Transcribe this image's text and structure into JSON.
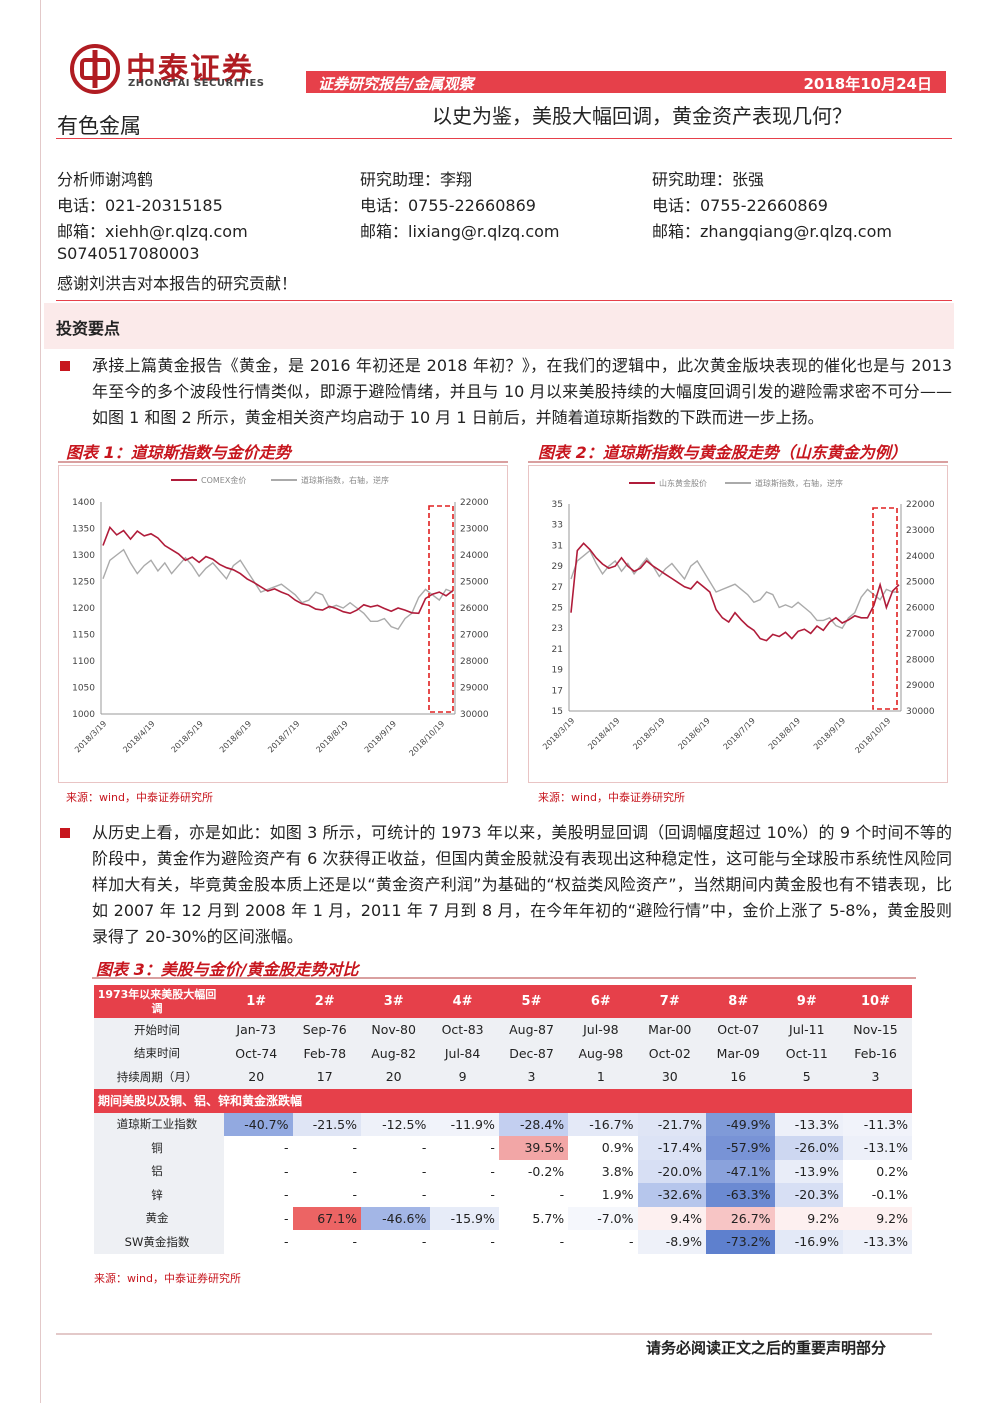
{
  "header": {
    "brand_cn": "中泰证券",
    "brand_en": "ZHONGTAI SECURITIES",
    "report_type": "证券研究报告/金属观察",
    "date": "2018年10月24日",
    "sector": "有色金属",
    "title": "以史为鉴，美股大幅回调，黄金资产表现几何？"
  },
  "authors": [
    {
      "role": "分析师谢鸿鹤",
      "phone": "电话：021-20315185",
      "email": "邮箱：xiehh@r.qlzq.com",
      "cert": "S0740517080003"
    },
    {
      "role": "研究助理：李翔",
      "phone": "电话：0755-22660869",
      "email": "邮箱：lixiang@r.qlzq.com"
    },
    {
      "role": "研究助理：张强",
      "phone": "电话：0755-22660869",
      "email": "邮箱：zhangqiang@r.qlzq.com"
    }
  ],
  "thanks": "感谢刘洪吉对本报告的研究贡献！",
  "section_title": "投资要点",
  "para1": "承接上篇黄金报告《黄金，是 2016 年初还是 2018 年初？》，在我们的逻辑中，此次黄金版块表现的催化也是与 2013 年至今的多个波段性行情类似，即源于避险情绪，并且与 10 月以来美股持续的大幅度回调引发的避险需求密不可分——如图 1 和图 2 所示，黄金相关资产均启动于 10 月 1 日前后，并随着道琼斯指数的下跌而进一步上扬。",
  "para2": "从历史上看，亦是如此：如图 3 所示，可统计的 1973 年以来，美股明显回调（回调幅度超过 10%）的 9 个时间不等的阶段中，黄金作为避险资产有 6 次获得正收益，但国内黄金股就没有表现出这种稳定性，这可能与全球股市系统性风险同样加大有关，毕竟黄金股本质上还是以“黄金资产利润”为基础的“权益类风险资产”，当然期间内黄金股也有不错表现，比如 2007 年 12 月到 2008 年 1 月，2011 年 7 月到 8 月，在今年年初的“避险行情”中，金价上涨了 5-8%，黄金股则录得了 20-30%的区间涨幅。",
  "fig1": {
    "title": "图表 1：道琼斯指数与金价走势",
    "legend1": "COMEX金价",
    "legend2": "道琼斯指数，右轴，逆序",
    "source": "来源：wind，中泰证券研究所"
  },
  "fig2": {
    "title": "图表 2：道琼斯指数与黄金股走势（山东黄金为例）",
    "legend1": "山东黄金股价",
    "legend2": "道琼斯指数，右轴，逆序",
    "source": "来源：wind，中泰证券研究所"
  },
  "chart_data": [
    {
      "type": "line",
      "title": "图表 1：道琼斯指数与金价走势",
      "x_ticks": [
        "2018/3/19",
        "2018/4/19",
        "2018/5/19",
        "2018/6/19",
        "2018/7/19",
        "2018/8/19",
        "2018/9/19",
        "2018/10/19"
      ],
      "y_left_ticks": [
        "1400",
        "1350",
        "1300",
        "1250",
        "1200",
        "1150",
        "1100",
        "1050",
        "1000"
      ],
      "y_right_ticks": [
        "22000",
        "23000",
        "24000",
        "25000",
        "26000",
        "27000",
        "28000",
        "29000",
        "30000"
      ],
      "ylim": [
        1000,
        1400
      ],
      "y2lim": [
        22000,
        30000
      ],
      "y2_reversed": true,
      "series": [
        {
          "name": "COMEX金价",
          "color": "#b01c3a",
          "values": [
            1318,
            1352,
            1338,
            1346,
            1330,
            1345,
            1336,
            1340,
            1332,
            1318,
            1310,
            1302,
            1290,
            1296,
            1286,
            1297,
            1292,
            1282,
            1276,
            1272,
            1265,
            1255,
            1248,
            1240,
            1232,
            1236,
            1230,
            1225,
            1215,
            1208,
            1205,
            1198,
            1196,
            1203,
            1199,
            1193,
            1190,
            1196,
            1206,
            1202,
            1205,
            1199,
            1194,
            1200,
            1196,
            1191,
            1190,
            1218,
            1226,
            1230,
            1223,
            1233
          ]
        },
        {
          "name": "道琼斯指数，右轴，逆序",
          "color": "#aaaaaa",
          "values": [
            24900,
            24200,
            24000,
            23800,
            24300,
            24700,
            24400,
            24200,
            24600,
            24300,
            24700,
            24400,
            24100,
            24400,
            24800,
            24500,
            24300,
            24600,
            24900,
            24400,
            24200,
            24600,
            25000,
            25400,
            25300,
            25200,
            25100,
            25300,
            25500,
            25800,
            25700,
            25400,
            25500,
            26000,
            25900,
            26000,
            25800,
            26000,
            26200,
            26500,
            26500,
            26400,
            26700,
            26800,
            26400,
            26200,
            25600,
            25300,
            25500,
            25700,
            25300,
            25400
          ]
        }
      ],
      "highlight_window": "2018/10/19"
    },
    {
      "type": "line",
      "title": "图表 2：道琼斯指数与黄金股走势（山东黄金为例）",
      "x_ticks": [
        "2018/3/19",
        "2018/4/19",
        "2018/5/19",
        "2018/6/19",
        "2018/7/19",
        "2018/8/19",
        "2018/9/19",
        "2018/10/19"
      ],
      "y_left_ticks": [
        "35",
        "33",
        "31",
        "29",
        "27",
        "25",
        "23",
        "21",
        "19",
        "17",
        "15"
      ],
      "y_right_ticks": [
        "22000",
        "23000",
        "24000",
        "25000",
        "26000",
        "27000",
        "28000",
        "29000",
        "30000"
      ],
      "ylim": [
        15,
        35
      ],
      "y2lim": [
        22000,
        30000
      ],
      "y2_reversed": true,
      "series": [
        {
          "name": "山东黄金股价",
          "color": "#b01c3a",
          "values": [
            24.5,
            30.5,
            31.2,
            30.6,
            29.8,
            29.2,
            28.8,
            29.0,
            29.8,
            29.0,
            28.5,
            28.8,
            29.5,
            29.0,
            28.6,
            28.2,
            27.8,
            27.4,
            27.0,
            26.8,
            27.5,
            27.0,
            26.5,
            24.8,
            24.0,
            23.6,
            24.5,
            23.8,
            23.2,
            22.8,
            22.0,
            21.8,
            22.4,
            22.2,
            22.6,
            22.0,
            22.7,
            22.9,
            22.5,
            23.2,
            22.8,
            23.6,
            24.0,
            23.5,
            23.8,
            24.2,
            24.0,
            24.0,
            25.2,
            27.2,
            25.0,
            26.6,
            27.2
          ]
        },
        {
          "name": "道琼斯指数，右轴，逆序",
          "color": "#aaaaaa",
          "values": [
            24900,
            24200,
            24000,
            23800,
            24300,
            24700,
            24400,
            24200,
            24600,
            24300,
            24700,
            24400,
            24100,
            24400,
            24800,
            24500,
            24300,
            24600,
            24900,
            24400,
            24200,
            24600,
            25000,
            25400,
            25300,
            25200,
            25100,
            25300,
            25500,
            25800,
            25700,
            25400,
            25500,
            26000,
            25900,
            26000,
            25800,
            26000,
            26200,
            26500,
            26500,
            26400,
            26700,
            26800,
            26400,
            26200,
            25600,
            25300,
            25500,
            25700,
            25300,
            25400,
            25400
          ]
        }
      ],
      "highlight_window": "2018/10/19"
    }
  ],
  "fig3": {
    "title": "图表 3：美股与金价/黄金股走势对比",
    "corner": "1973年以来美股大幅回调",
    "cols": [
      "1#",
      "2#",
      "3#",
      "4#",
      "5#",
      "6#",
      "7#",
      "8#",
      "9#",
      "10#"
    ],
    "rows_info": [
      {
        "label": "开始时间",
        "values": [
          "Jan-73",
          "Sep-76",
          "Nov-80",
          "Oct-83",
          "Aug-87",
          "Jul-98",
          "Mar-00",
          "Oct-07",
          "Jul-11",
          "Nov-15"
        ]
      },
      {
        "label": "结束时间",
        "values": [
          "Oct-74",
          "Feb-78",
          "Aug-82",
          "Jul-84",
          "Dec-87",
          "Aug-98",
          "Oct-02",
          "Mar-09",
          "Oct-11",
          "Feb-16"
        ]
      },
      {
        "label": "持续周期（月）",
        "values": [
          "20",
          "17",
          "20",
          "9",
          "3",
          "1",
          "30",
          "16",
          "5",
          "3"
        ]
      }
    ],
    "sub_header": "期间美股以及铜、铝、锌和黄金涨跌幅",
    "rows_perf": [
      {
        "label": "道琼斯工业指数",
        "values": [
          "-40.7%",
          "-21.5%",
          "-12.5%",
          "-11.9%",
          "-28.4%",
          "-16.7%",
          "-21.7%",
          "-49.9%",
          "-13.3%",
          "-11.3%"
        ],
        "colors": [
          "#92a9e0",
          "#dfe5f5",
          "#eef1f9",
          "#f1f3fa",
          "#c3cff0",
          "#e4e9f7",
          "#dfe5f5",
          "#7f9ad8",
          "#edf0f9",
          "#f1f3fa"
        ]
      },
      {
        "label": "铜",
        "values": [
          "-",
          "-",
          "-",
          "-",
          "39.5%",
          "0.9%",
          "-17.4%",
          "-57.9%",
          "-26.0%",
          "-13.1%"
        ],
        "colors": [
          "#fff",
          "#fff",
          "#fff",
          "#fff",
          "#f2a6a6",
          "#fff",
          "#dce3f5",
          "#7893d6",
          "#cdd7f1",
          "#edf0f9"
        ]
      },
      {
        "label": "铝",
        "values": [
          "-",
          "-",
          "-",
          "-",
          "-0.2%",
          "3.8%",
          "-20.0%",
          "-47.1%",
          "-13.9%",
          "0.2%"
        ],
        "colors": [
          "#fff",
          "#fff",
          "#fff",
          "#fff",
          "#fff",
          "#fff",
          "#d7dff4",
          "#8aa2dc",
          "#e9edf8",
          "#fff"
        ]
      },
      {
        "label": "锌",
        "values": [
          "-",
          "-",
          "-",
          "-",
          "-",
          "1.9%",
          "-32.6%",
          "-63.3%",
          "-20.3%",
          "-0.1%"
        ],
        "colors": [
          "#fff",
          "#fff",
          "#fff",
          "#fff",
          "#fff",
          "#fff",
          "#b6c6ec",
          "#6b8ad2",
          "#d7dff4",
          "#fff"
        ]
      },
      {
        "label": "黄金",
        "values": [
          "-",
          "67.1%",
          "-46.6%",
          "-15.9%",
          "5.7%",
          "-7.0%",
          "9.4%",
          "26.7%",
          "9.2%",
          "9.2%"
        ],
        "colors": [
          "#fff",
          "#ec6464",
          "#a3b6e6",
          "#e7ecf8",
          "#fff",
          "#f5f7fc",
          "#fdf0f0",
          "#f7c5c5",
          "#fdf0f0",
          "#fdf0f0"
        ]
      },
      {
        "label": "SW黄金指数",
        "values": [
          "-",
          "-",
          "-",
          "-",
          "-",
          "-",
          "-8.9%",
          "-73.2%",
          "-16.9%",
          "-13.3%"
        ],
        "colors": [
          "#fff",
          "#fff",
          "#fff",
          "#fff",
          "#fff",
          "#fff",
          "#eef1f9",
          "#5e80ce",
          "#e3e9f7",
          "#edf0f9"
        ]
      }
    ],
    "source": "来源：wind，中泰证券研究所"
  },
  "footer": "请务必阅读正文之后的重要声明部分"
}
